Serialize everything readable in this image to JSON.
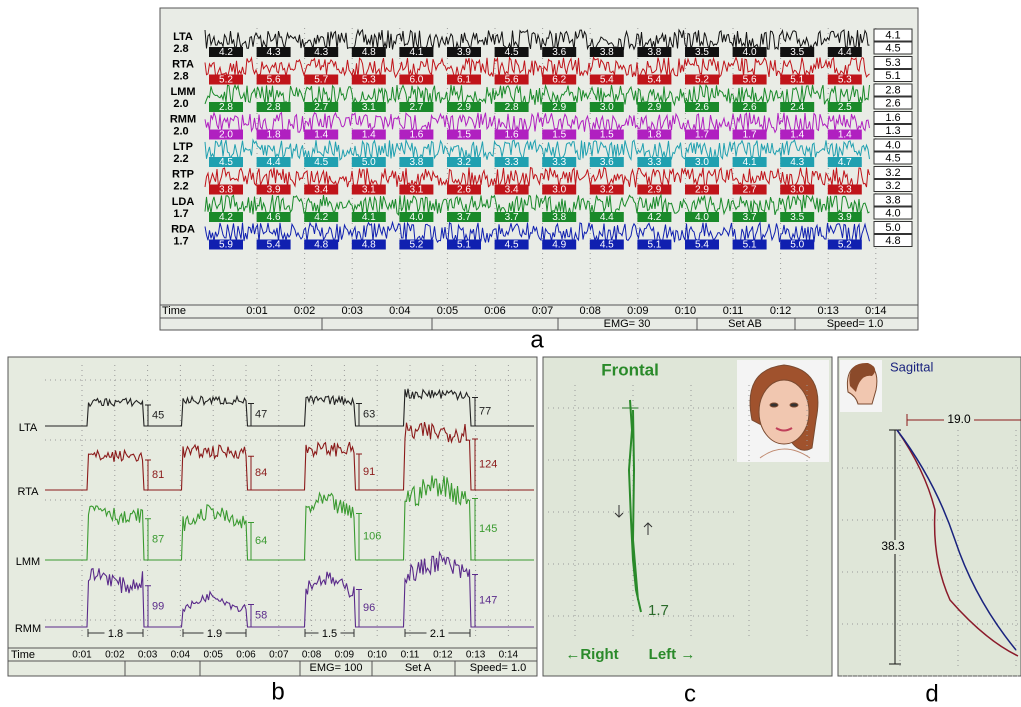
{
  "panel_a": {
    "caption": "a",
    "rows": [
      {
        "name": "LTA",
        "scale": "2.8",
        "right": [
          "4.1",
          "4.5"
        ],
        "boxes": [
          "4.2",
          "4.3",
          "4.3",
          "4.8",
          "4.1",
          "3.9",
          "4.5",
          "3.6",
          "3.8",
          "3.8",
          "3.5",
          "4.0",
          "3.5",
          "4.4"
        ]
      },
      {
        "name": "RTA",
        "scale": "2.8",
        "right": [
          "5.3",
          "5.1"
        ],
        "boxes": [
          "5.2",
          "5.6",
          "5.7",
          "5.3",
          "6.0",
          "6.1",
          "5.6",
          "6.2",
          "5.4",
          "5.4",
          "5.2",
          "5.6",
          "5.1",
          "5.3"
        ]
      },
      {
        "name": "LMM",
        "scale": "2.0",
        "right": [
          "2.8",
          "2.6"
        ],
        "boxes": [
          "2.8",
          "2.8",
          "2.7",
          "3.1",
          "2.7",
          "2.9",
          "2.8",
          "2.9",
          "3.0",
          "2.9",
          "2.6",
          "2.6",
          "2.4",
          "2.5"
        ]
      },
      {
        "name": "RMM",
        "scale": "2.0",
        "right": [
          "1.6",
          "1.3"
        ],
        "boxes": [
          "2.0",
          "1.8",
          "1.4",
          "1.4",
          "1.6",
          "1.5",
          "1.6",
          "1.5",
          "1.5",
          "1.8",
          "1.7",
          "1.7",
          "1.4",
          "1.4"
        ]
      },
      {
        "name": "LTP",
        "scale": "2.2",
        "right": [
          "4.0",
          "4.5"
        ],
        "boxes": [
          "4.5",
          "4.4",
          "4.5",
          "5.0",
          "3.8",
          "3.2",
          "3.3",
          "3.3",
          "3.6",
          "3.3",
          "3.0",
          "4.1",
          "4.3",
          "4.7"
        ]
      },
      {
        "name": "RTP",
        "scale": "2.2",
        "right": [
          "3.2",
          "3.2"
        ],
        "boxes": [
          "3.8",
          "3.9",
          "3.4",
          "3.1",
          "3.1",
          "2.6",
          "3.4",
          "3.0",
          "3.2",
          "2.9",
          "2.9",
          "2.7",
          "3.0",
          "3.3"
        ]
      },
      {
        "name": "LDA",
        "scale": "1.7",
        "right": [
          "3.8",
          "4.0"
        ],
        "boxes": [
          "4.2",
          "4.6",
          "4.2",
          "4.1",
          "4.0",
          "3.7",
          "3.7",
          "3.8",
          "4.4",
          "4.2",
          "4.0",
          "3.7",
          "3.5",
          "3.9"
        ]
      },
      {
        "name": "RDA",
        "scale": "1.7",
        "right": [
          "5.0",
          "4.8"
        ],
        "boxes": [
          "5.9",
          "5.4",
          "4.8",
          "4.8",
          "5.2",
          "5.1",
          "4.5",
          "4.9",
          "4.5",
          "5.1",
          "5.4",
          "5.1",
          "5.0",
          "5.2"
        ]
      }
    ],
    "time_label": "Time",
    "times": [
      "0:01",
      "0:02",
      "0:03",
      "0:04",
      "0:05",
      "0:06",
      "0:07",
      "0:08",
      "0:09",
      "0:10",
      "0:11",
      "0:12",
      "0:13",
      "0:14"
    ],
    "footer": [
      "EMG= 30",
      "Set AB",
      "Speed= 1.0"
    ]
  },
  "panel_b": {
    "caption": "b",
    "rows": [
      {
        "name": "LTA",
        "peaks": [
          "45",
          "47",
          "63",
          "77"
        ]
      },
      {
        "name": "RTA",
        "peaks": [
          "81",
          "84",
          "91",
          "124"
        ]
      },
      {
        "name": "LMM",
        "peaks": [
          "87",
          "64",
          "106",
          "145"
        ]
      },
      {
        "name": "RMM",
        "peaks": [
          "99",
          "58",
          "96",
          "147"
        ]
      }
    ],
    "spans": [
      "1.8",
      "1.9",
      "1.5",
      "2.1"
    ],
    "time_label": "Time",
    "times": [
      "0:01",
      "0:02",
      "0:03",
      "0:04",
      "0:05",
      "0:06",
      "0:07",
      "0:08",
      "0:09",
      "0:10",
      "0:11",
      "0:12",
      "0:13",
      "0:14"
    ],
    "footer": [
      "EMG= 100",
      "Set A",
      "Speed= 1.0"
    ]
  },
  "panel_c": {
    "caption": "c",
    "title": "Frontal",
    "value": "1.7",
    "left_label": "←Right",
    "right_label": "Left →"
  },
  "panel_d": {
    "caption": "d",
    "title": "Sagittal",
    "width": "19.0",
    "height": "38.3"
  }
}
